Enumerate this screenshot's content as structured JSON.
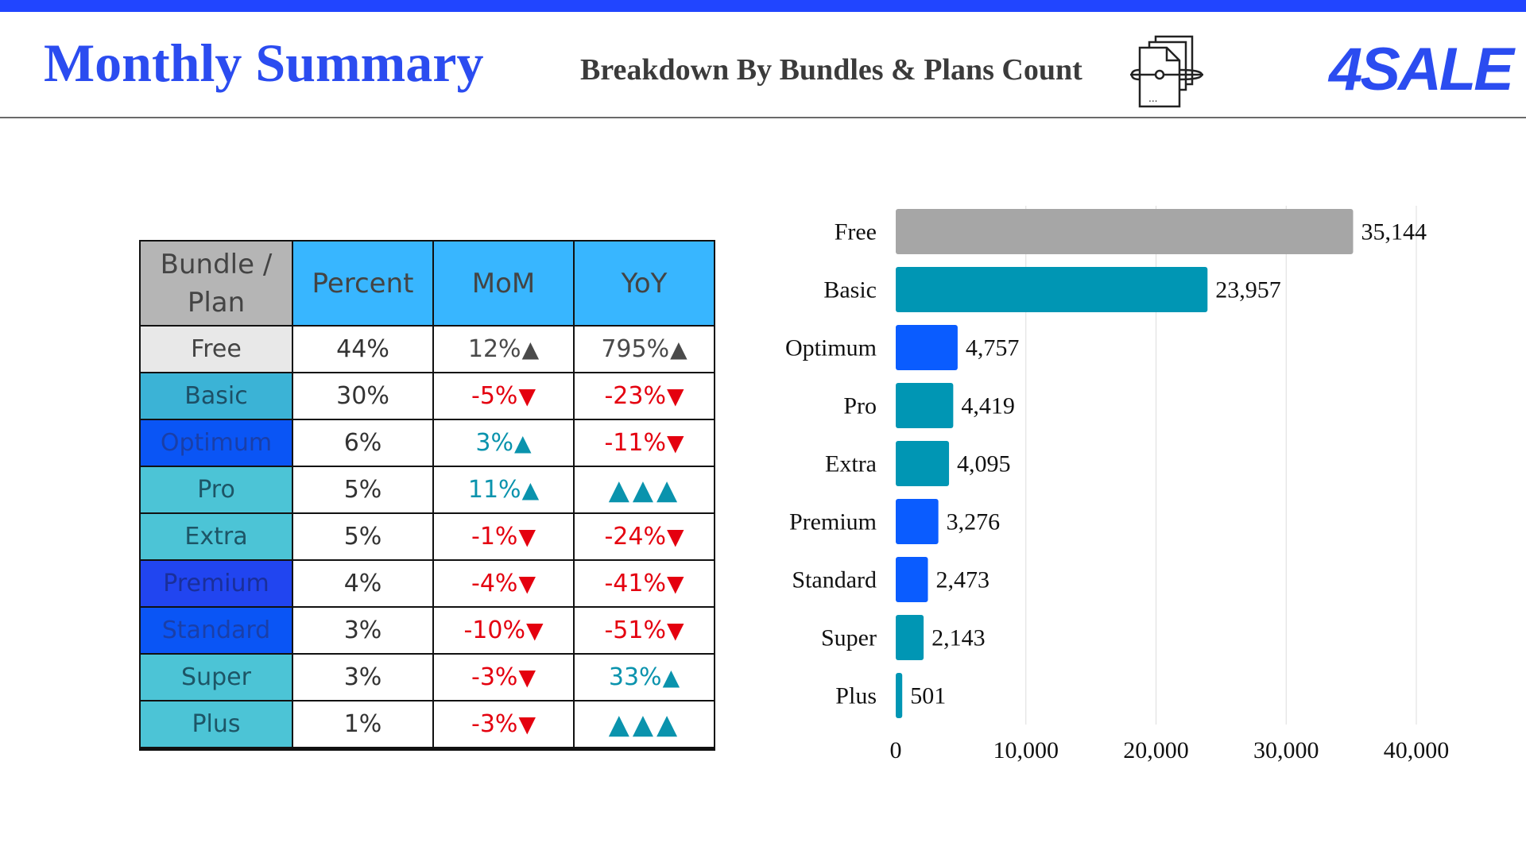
{
  "header": {
    "title": "Monthly Summary",
    "subtitle": "Breakdown By Bundles & Plans Count",
    "logo_text": "4SALE",
    "icon": "document-stack-icon",
    "icon_caption": "...",
    "accent_color": "#2145ff"
  },
  "table": {
    "headers": [
      "Bundle / Plan",
      "Percent",
      "MoM",
      "YoY"
    ],
    "rows": [
      {
        "plan": "Free",
        "plan_color": "#e8e8e8",
        "plan_text_color": "#444444",
        "percent": "44%",
        "mom": "12%",
        "mom_dir": "neutral-up",
        "yoy": "795%",
        "yoy_dir": "neutral-up"
      },
      {
        "plan": "Basic",
        "plan_color": "#3bb3d6",
        "plan_text_color": "#1d4f66",
        "percent": "30%",
        "mom": "-5%",
        "mom_dir": "down",
        "yoy": "-23%",
        "yoy_dir": "down"
      },
      {
        "plan": "Optimum",
        "plan_color": "#0a55f5",
        "plan_text_color": "#1a3fa8",
        "percent": "6%",
        "mom": "3%",
        "mom_dir": "up",
        "yoy": "-11%",
        "yoy_dir": "down"
      },
      {
        "plan": "Pro",
        "plan_color": "#4cc4d6",
        "plan_text_color": "#1d5566",
        "percent": "5%",
        "mom": "11%",
        "mom_dir": "up",
        "yoy": "",
        "yoy_dir": "triple-up"
      },
      {
        "plan": "Extra",
        "plan_color": "#4cc4d6",
        "plan_text_color": "#1d5566",
        "percent": "5%",
        "mom": "-1%",
        "mom_dir": "down",
        "yoy": "-24%",
        "yoy_dir": "down"
      },
      {
        "plan": "Premium",
        "plan_color": "#2145f0",
        "plan_text_color": "#1a2f9a",
        "percent": "4%",
        "mom": "-4%",
        "mom_dir": "down",
        "yoy": "-41%",
        "yoy_dir": "down"
      },
      {
        "plan": "Standard",
        "plan_color": "#0a55f5",
        "plan_text_color": "#1a3fa8",
        "percent": "3%",
        "mom": "-10%",
        "mom_dir": "down",
        "yoy": "-51%",
        "yoy_dir": "down"
      },
      {
        "plan": "Super",
        "plan_color": "#4cc4d6",
        "plan_text_color": "#1d5566",
        "percent": "3%",
        "mom": "-3%",
        "mom_dir": "down",
        "yoy": "33%",
        "yoy_dir": "up"
      },
      {
        "plan": "Plus",
        "plan_color": "#4cc4d6",
        "plan_text_color": "#1d5566",
        "percent": "1%",
        "mom": "-3%",
        "mom_dir": "down",
        "yoy": "",
        "yoy_dir": "triple-up"
      }
    ],
    "colors": {
      "up": "#0a93ad",
      "down": "#e4000f",
      "neutral": "#4a4a4a"
    }
  },
  "chart_data": {
    "type": "bar",
    "orientation": "horizontal",
    "title": "",
    "xlabel": "",
    "ylabel": "",
    "categories": [
      "Free",
      "Basic",
      "Optimum",
      "Pro",
      "Extra",
      "Premium",
      "Standard",
      "Super",
      "Plus"
    ],
    "values": [
      35144,
      23957,
      4757,
      4419,
      4095,
      3276,
      2473,
      2143,
      501
    ],
    "value_labels": [
      "35,144",
      "23,957",
      "4,757",
      "4,419",
      "4,095",
      "3,276",
      "2,473",
      "2,143",
      "501"
    ],
    "bar_colors": [
      "#a6a6a6",
      "#0096b4",
      "#0a5cff",
      "#0096b4",
      "#0096b4",
      "#0a5cff",
      "#0a5cff",
      "#0096b4",
      "#0096b4"
    ],
    "xlim": [
      0,
      40000
    ],
    "x_ticks": [
      0,
      10000,
      20000,
      30000,
      40000
    ],
    "x_tick_labels": [
      "0",
      "10,000",
      "20,000",
      "30,000",
      "40,000"
    ],
    "grid": true,
    "legend": "none"
  }
}
